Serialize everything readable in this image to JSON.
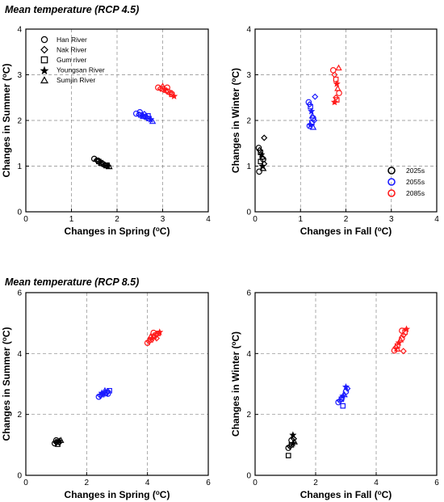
{
  "headings": [
    "Mean temperature (RCP 4.5)",
    "Mean temperature (RCP 8.5)"
  ],
  "marker_legend": [
    {
      "name": "Han River",
      "symbol": "circle"
    },
    {
      "name": "Nak River",
      "symbol": "diamond"
    },
    {
      "name": "Gum river",
      "symbol": "square"
    },
    {
      "name": "Youngsan River",
      "symbol": "star"
    },
    {
      "name": "Sumjin River",
      "symbol": "triangle"
    }
  ],
  "period_legend": [
    {
      "name": "2025s",
      "color": "#000000"
    },
    {
      "name": "2055s",
      "color": "#1a1aff"
    },
    {
      "name": "2085s",
      "color": "#ff1a1a"
    }
  ],
  "colors": {
    "2025s": "#000000",
    "2055s": "#1a1aff",
    "2085s": "#ff1a1a"
  },
  "chart_data": [
    {
      "type": "scatter",
      "title": "Mean temperature (RCP 4.5)",
      "xlabel": "Changes in Spring (oC)",
      "ylabel": "Changes in Summer (oC)",
      "xlim": [
        0,
        4
      ],
      "ylim": [
        0,
        4
      ],
      "xticks": [
        0,
        1,
        2,
        3,
        4
      ],
      "yticks": [
        0,
        1,
        2,
        3,
        4
      ],
      "grid": true,
      "legend": "markers, top-left",
      "series": [
        {
          "name": "2025s",
          "x": [
            1.5,
            1.55,
            1.6,
            1.63,
            1.66,
            1.7,
            1.73,
            1.76,
            1.8,
            1.83,
            1.58,
            1.68,
            1.78
          ],
          "y": [
            1.16,
            1.13,
            1.1,
            1.08,
            1.06,
            1.04,
            1.03,
            1.01,
            1.0,
            0.99,
            1.12,
            1.07,
            1.02
          ]
        },
        {
          "name": "2055s",
          "x": [
            2.42,
            2.48,
            2.52,
            2.55,
            2.58,
            2.62,
            2.66,
            2.7,
            2.74,
            2.78,
            2.5,
            2.6,
            2.68
          ],
          "y": [
            2.15,
            2.13,
            2.12,
            2.1,
            2.09,
            2.08,
            2.06,
            2.04,
            2.02,
            1.98,
            2.18,
            2.14,
            2.1
          ]
        },
        {
          "name": "2085s",
          "x": [
            2.9,
            2.95,
            3.0,
            3.04,
            3.08,
            3.12,
            3.16,
            3.2,
            3.25,
            3.0,
            3.1,
            3.2
          ],
          "y": [
            2.72,
            2.7,
            2.69,
            2.68,
            2.66,
            2.63,
            2.6,
            2.57,
            2.53,
            2.75,
            2.72,
            2.6
          ]
        }
      ]
    },
    {
      "type": "scatter",
      "title": "",
      "xlabel": "Changes in Fall (oC)",
      "ylabel": "Changes in Winter (oC)",
      "xlim": [
        0,
        4
      ],
      "ylim": [
        0,
        4
      ],
      "xticks": [
        0,
        1,
        2,
        3,
        4
      ],
      "yticks": [
        0,
        1,
        2,
        3,
        4
      ],
      "grid": true,
      "legend": "periods, bottom-right",
      "series": [
        {
          "name": "2025s",
          "x": [
            0.08,
            0.1,
            0.12,
            0.14,
            0.16,
            0.18,
            0.2,
            0.12,
            0.16,
            0.18,
            0.09,
            0.2
          ],
          "y": [
            1.4,
            1.35,
            1.3,
            1.25,
            1.2,
            1.15,
            1.05,
            1.1,
            1.0,
            0.95,
            0.88,
            1.62
          ]
        },
        {
          "name": "2055s",
          "x": [
            1.18,
            1.2,
            1.22,
            1.24,
            1.26,
            1.28,
            1.3,
            1.25,
            1.22,
            1.28,
            1.2,
            1.32
          ],
          "y": [
            2.4,
            2.35,
            2.3,
            2.2,
            2.1,
            2.05,
            2.0,
            1.95,
            1.9,
            1.85,
            1.88,
            2.52
          ]
        },
        {
          "name": "2085s",
          "x": [
            1.72,
            1.75,
            1.78,
            1.8,
            1.82,
            1.85,
            1.78,
            1.8,
            1.75,
            1.84
          ],
          "y": [
            3.1,
            3.0,
            2.9,
            2.8,
            2.7,
            2.6,
            2.5,
            2.45,
            2.4,
            3.15
          ]
        }
      ]
    },
    {
      "type": "scatter",
      "title": "Mean temperature (RCP 8.5)",
      "xlabel": "Changes in Spring (oC)",
      "ylabel": "Changes in Summer (oC)",
      "xlim": [
        0,
        6
      ],
      "ylim": [
        0,
        6
      ],
      "xticks": [
        0,
        2,
        4,
        6
      ],
      "yticks": [
        0,
        2,
        4,
        6
      ],
      "grid": true,
      "series": [
        {
          "name": "2025s",
          "x": [
            0.95,
            1.0,
            1.05,
            1.1,
            1.15,
            1.0,
            1.1,
            1.05
          ],
          "y": [
            1.05,
            1.08,
            1.1,
            1.12,
            1.15,
            1.15,
            1.08,
            1.02
          ]
        },
        {
          "name": "2055s",
          "x": [
            2.4,
            2.45,
            2.5,
            2.55,
            2.6,
            2.65,
            2.7,
            2.75,
            2.5,
            2.6,
            2.7
          ],
          "y": [
            2.58,
            2.62,
            2.65,
            2.68,
            2.7,
            2.72,
            2.75,
            2.78,
            2.7,
            2.78,
            2.68
          ]
        },
        {
          "name": "2085s",
          "x": [
            4.0,
            4.05,
            4.1,
            4.15,
            4.2,
            4.25,
            4.3,
            4.35,
            4.4,
            4.1,
            4.2,
            4.3
          ],
          "y": [
            4.35,
            4.4,
            4.45,
            4.5,
            4.55,
            4.6,
            4.62,
            4.66,
            4.7,
            4.55,
            4.68,
            4.5
          ]
        }
      ]
    },
    {
      "type": "scatter",
      "title": "",
      "xlabel": "Changes in Fall (oC)",
      "ylabel": "Changes in Winter (oC)",
      "xlim": [
        0,
        6
      ],
      "ylim": [
        0,
        6
      ],
      "xticks": [
        0,
        2,
        4,
        6
      ],
      "yticks": [
        0,
        2,
        4,
        6
      ],
      "grid": true,
      "series": [
        {
          "name": "2025s",
          "x": [
            1.1,
            1.15,
            1.2,
            1.25,
            1.3,
            1.2,
            1.28,
            1.1,
            1.25
          ],
          "y": [
            0.9,
            0.95,
            1.0,
            1.05,
            1.1,
            1.15,
            1.2,
            0.65,
            1.32
          ]
        },
        {
          "name": "2055s",
          "x": [
            2.75,
            2.8,
            2.85,
            2.9,
            2.95,
            3.0,
            3.05,
            2.9,
            3.0,
            2.85
          ],
          "y": [
            2.4,
            2.45,
            2.5,
            2.6,
            2.65,
            2.75,
            2.85,
            2.28,
            2.9,
            2.55
          ]
        },
        {
          "name": "2085s",
          "x": [
            4.6,
            4.65,
            4.7,
            4.75,
            4.8,
            4.85,
            4.9,
            4.95,
            5.0,
            4.7,
            4.85,
            4.9
          ],
          "y": [
            4.1,
            4.2,
            4.25,
            4.35,
            4.45,
            4.5,
            4.6,
            4.7,
            4.8,
            4.15,
            4.75,
            4.08
          ]
        }
      ]
    }
  ]
}
